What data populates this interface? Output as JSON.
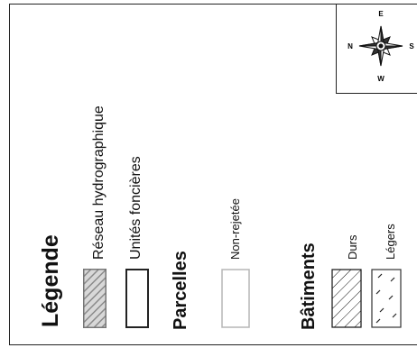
{
  "legend": {
    "title": "Légende",
    "items": [
      {
        "label": "Réseau hydrographique",
        "pattern": "diagonal-hatch-gray"
      },
      {
        "label": "Unités foncières",
        "pattern": "outline-dark"
      }
    ]
  },
  "parcelles": {
    "title": "Parcelles",
    "items": [
      {
        "label": "Non-rejetée",
        "pattern": "outline-light"
      }
    ]
  },
  "batiments": {
    "title": "Bâtiments",
    "items": [
      {
        "label": "Durs",
        "pattern": "diagonal-hatch-black"
      },
      {
        "label": "Légers",
        "pattern": "sparse-dash"
      }
    ]
  },
  "compass": {
    "icon": "compass-rose-icon",
    "directions": [
      "E",
      "N",
      "S",
      "W"
    ]
  },
  "colors": {
    "border": "#222222",
    "hatch_gray": "#8a8a8a",
    "outline_light": "#b5b5b5"
  }
}
